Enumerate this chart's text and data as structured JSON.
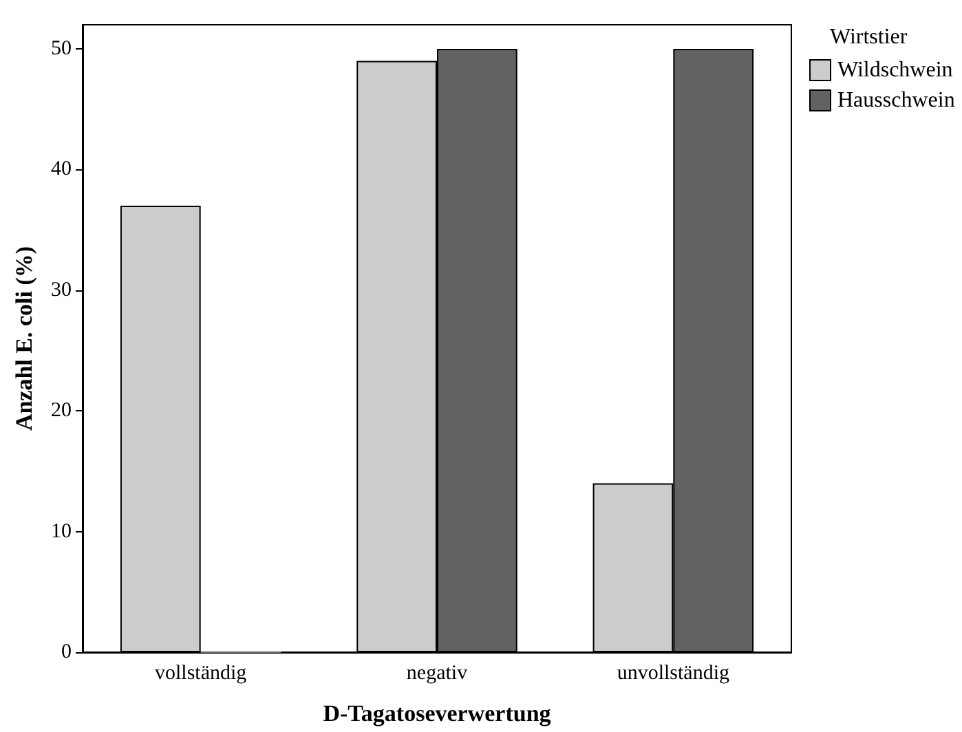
{
  "chart_data": {
    "type": "bar",
    "xlabel": "D-Tagatoseverwertung",
    "ylabel": "Anzahl E. coli (%)",
    "legend_title": "Wirtstier",
    "categories": [
      "vollständig",
      "negativ",
      "unvollständig"
    ],
    "series": [
      {
        "name": "Wildschwein",
        "color": "#cccccc",
        "values": [
          37,
          49,
          14
        ]
      },
      {
        "name": "Hausschwein",
        "color": "#626262",
        "values": [
          0,
          50,
          50
        ]
      }
    ],
    "ylim": [
      0,
      52
    ],
    "yticks": [
      0,
      10,
      20,
      30,
      40,
      50
    ],
    "grid": false,
    "legend": "right"
  }
}
